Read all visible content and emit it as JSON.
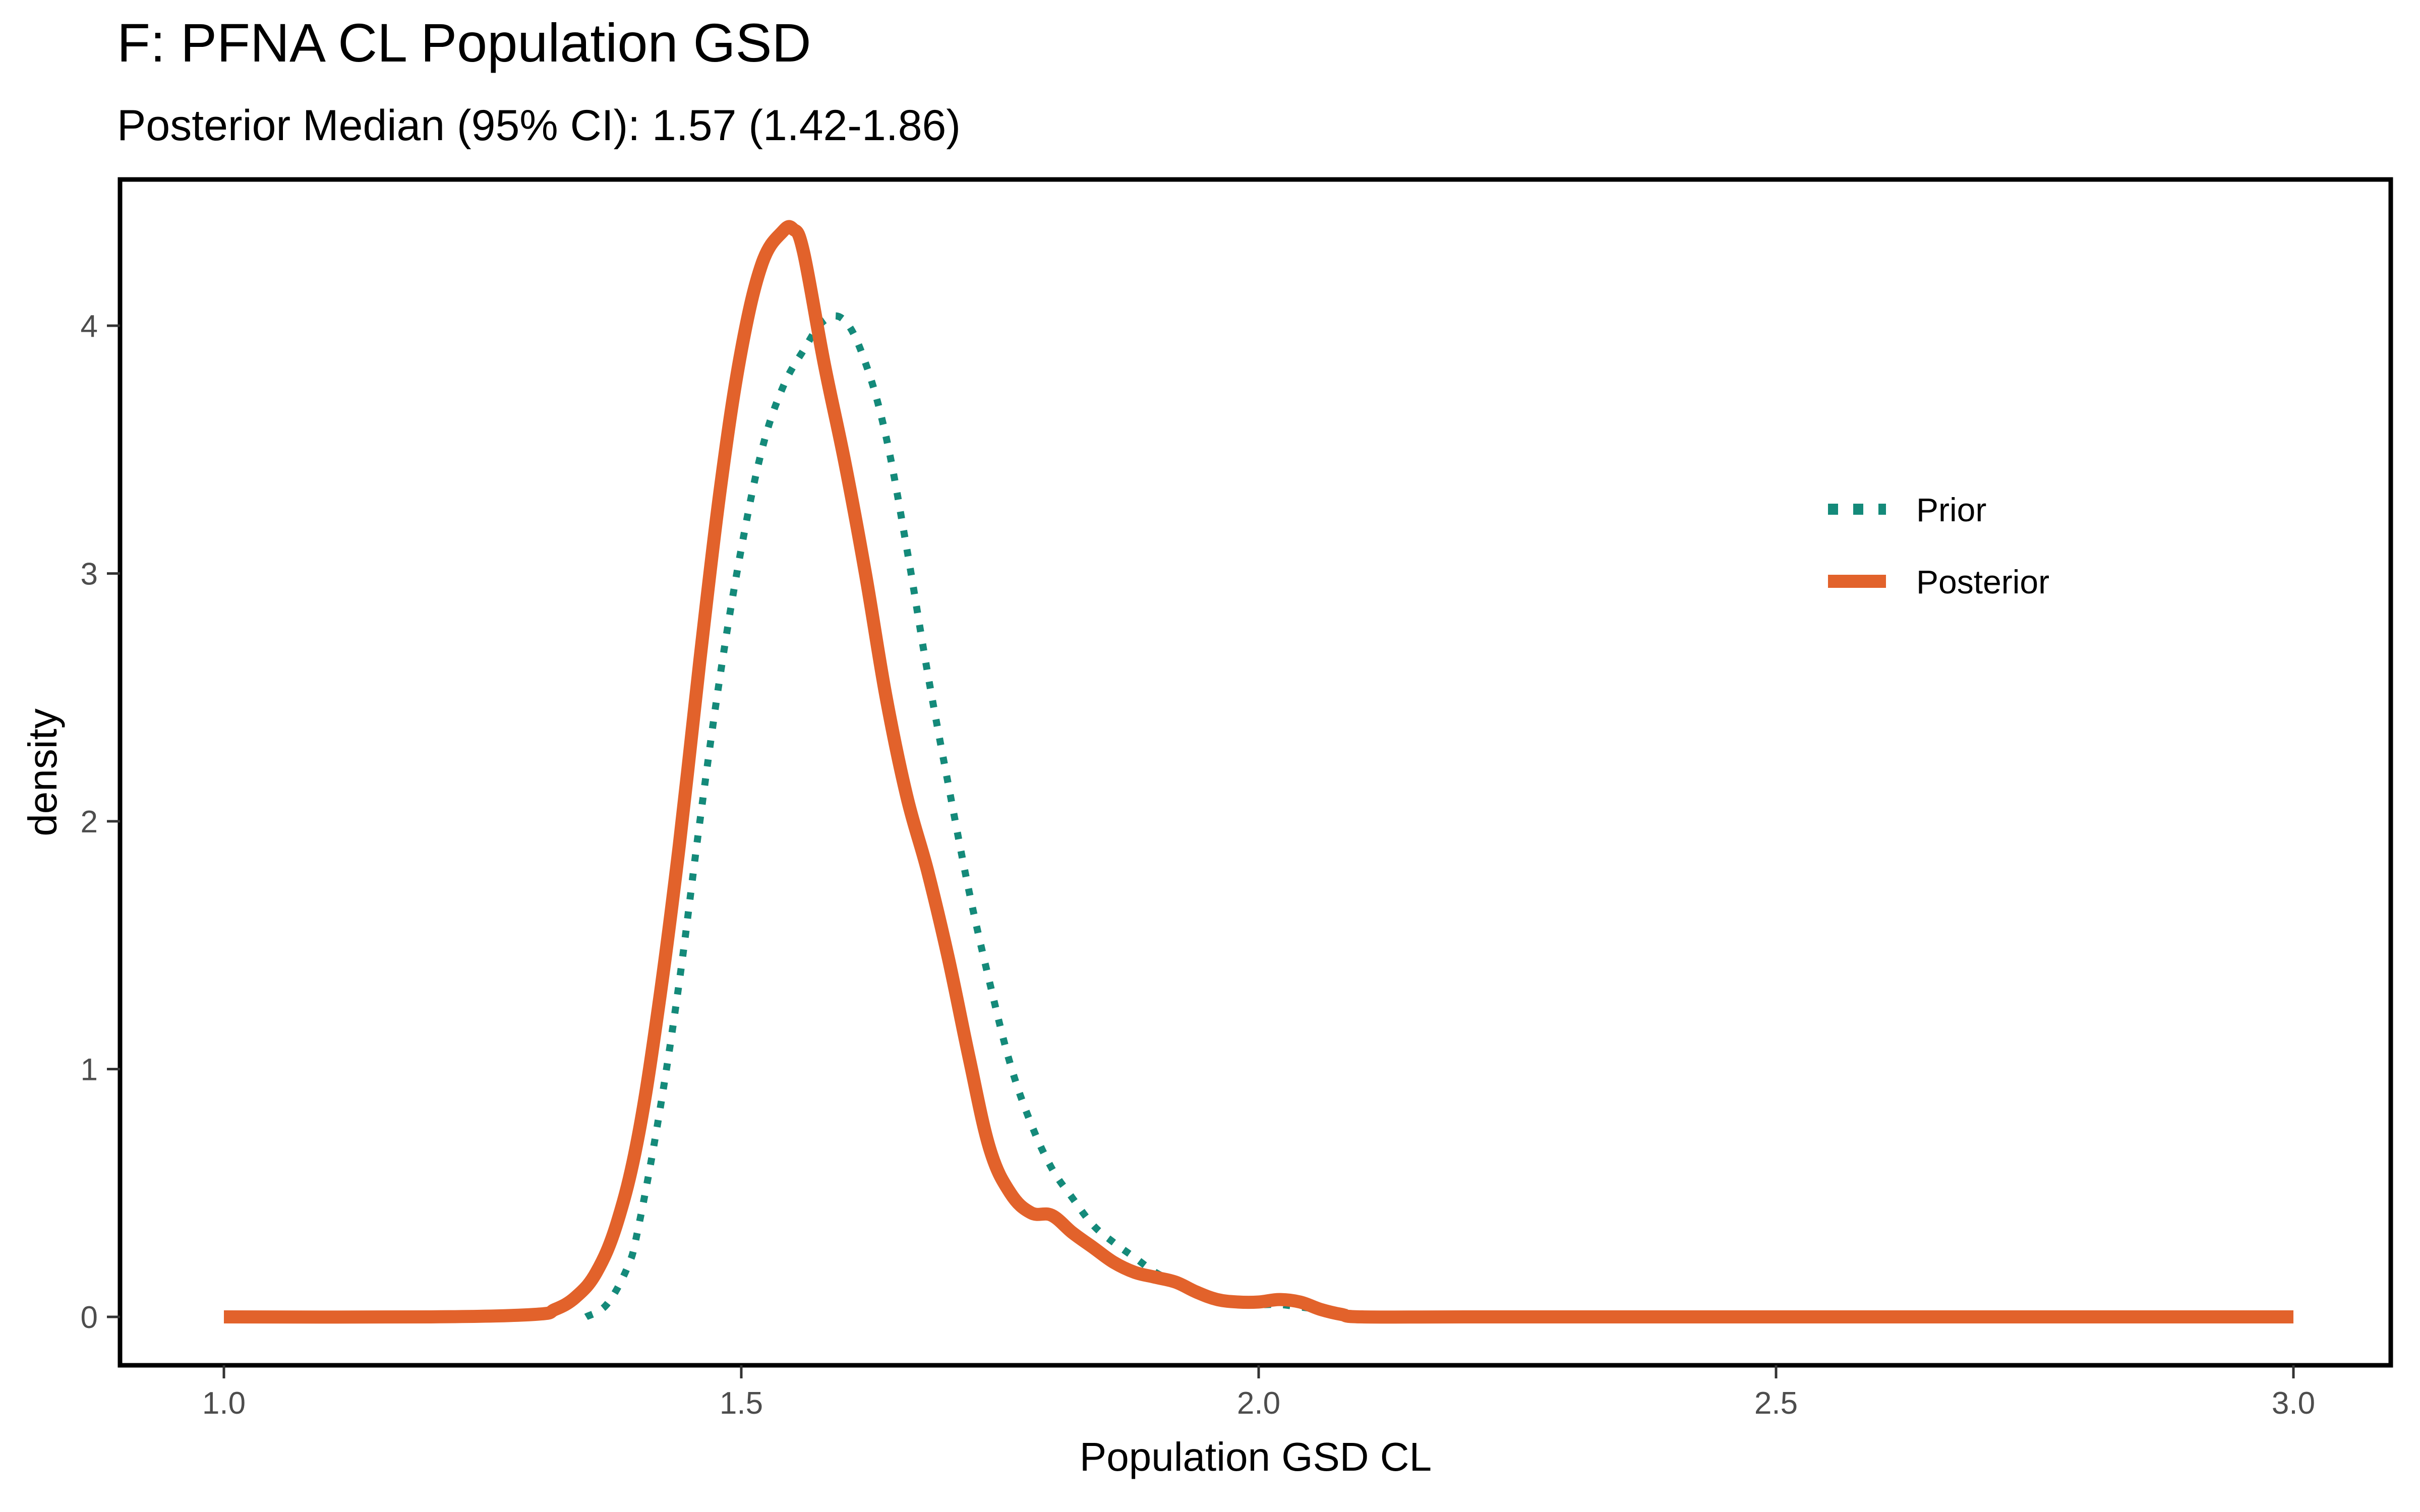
{
  "chart_data": {
    "type": "line",
    "title": "F: PFNA CL Population GSD",
    "subtitle": "Posterior Median (95% CI): 1.57 (1.42-1.86)",
    "xlabel": "Population GSD CL",
    "ylabel": "density",
    "xlim": [
      0.9,
      3.2
    ],
    "ylim": [
      -0.2,
      4.6
    ],
    "xticks": [
      1.0,
      1.5,
      2.0,
      2.5,
      3.0
    ],
    "xtick_labels": [
      "1.0",
      "1.5",
      "2.0",
      "2.5",
      "3.0"
    ],
    "yticks": [
      0,
      1,
      2,
      3,
      4
    ],
    "ytick_labels": [
      "0",
      "1",
      "2",
      "3",
      "4"
    ],
    "grid": false,
    "legend_position": "right",
    "series": [
      {
        "name": "Prior",
        "color": "#148a7a",
        "style": "dotted",
        "x": [
          1.35,
          1.37,
          1.39,
          1.4,
          1.42,
          1.44,
          1.46,
          1.48,
          1.5,
          1.52,
          1.54,
          1.56,
          1.58,
          1.6,
          1.62,
          1.64,
          1.66,
          1.68,
          1.7,
          1.72,
          1.74,
          1.76,
          1.78,
          1.8,
          1.82,
          1.84,
          1.86,
          1.88,
          1.9,
          1.92,
          1.94,
          1.96,
          1.98,
          2.0,
          2.02,
          2.04,
          2.06,
          2.08,
          2.1,
          2.12
        ],
        "y": [
          0.0,
          0.05,
          0.2,
          0.35,
          0.8,
          1.35,
          2.0,
          2.6,
          3.1,
          3.5,
          3.75,
          3.9,
          4.02,
          4.02,
          3.85,
          3.55,
          3.1,
          2.6,
          2.15,
          1.72,
          1.35,
          1.02,
          0.78,
          0.6,
          0.48,
          0.37,
          0.3,
          0.24,
          0.18,
          0.14,
          0.11,
          0.08,
          0.06,
          0.05,
          0.05,
          0.04,
          0.03,
          0.02,
          0.01,
          0.0
        ]
      },
      {
        "name": "Posterior",
        "color": "#e2622b",
        "style": "solid",
        "x": [
          1.0,
          1.2,
          1.3,
          1.32,
          1.34,
          1.36,
          1.38,
          1.4,
          1.42,
          1.44,
          1.46,
          1.48,
          1.5,
          1.52,
          1.54,
          1.55,
          1.56,
          1.58,
          1.6,
          1.62,
          1.64,
          1.66,
          1.68,
          1.7,
          1.72,
          1.74,
          1.76,
          1.78,
          1.8,
          1.82,
          1.84,
          1.86,
          1.88,
          1.9,
          1.92,
          1.94,
          1.96,
          1.98,
          2.0,
          2.02,
          2.04,
          2.06,
          2.08,
          2.1,
          2.2,
          2.4,
          2.6,
          2.8,
          3.0
        ],
        "y": [
          0.0,
          0.0,
          0.01,
          0.03,
          0.08,
          0.18,
          0.38,
          0.72,
          1.25,
          1.9,
          2.65,
          3.35,
          3.9,
          4.25,
          4.38,
          4.39,
          4.3,
          3.85,
          3.45,
          3.0,
          2.5,
          2.1,
          1.8,
          1.45,
          1.05,
          0.68,
          0.5,
          0.42,
          0.41,
          0.34,
          0.28,
          0.22,
          0.18,
          0.16,
          0.14,
          0.1,
          0.07,
          0.06,
          0.06,
          0.07,
          0.06,
          0.03,
          0.01,
          0.0,
          0.0,
          0.0,
          0.0,
          0.0,
          0.0
        ]
      }
    ]
  }
}
